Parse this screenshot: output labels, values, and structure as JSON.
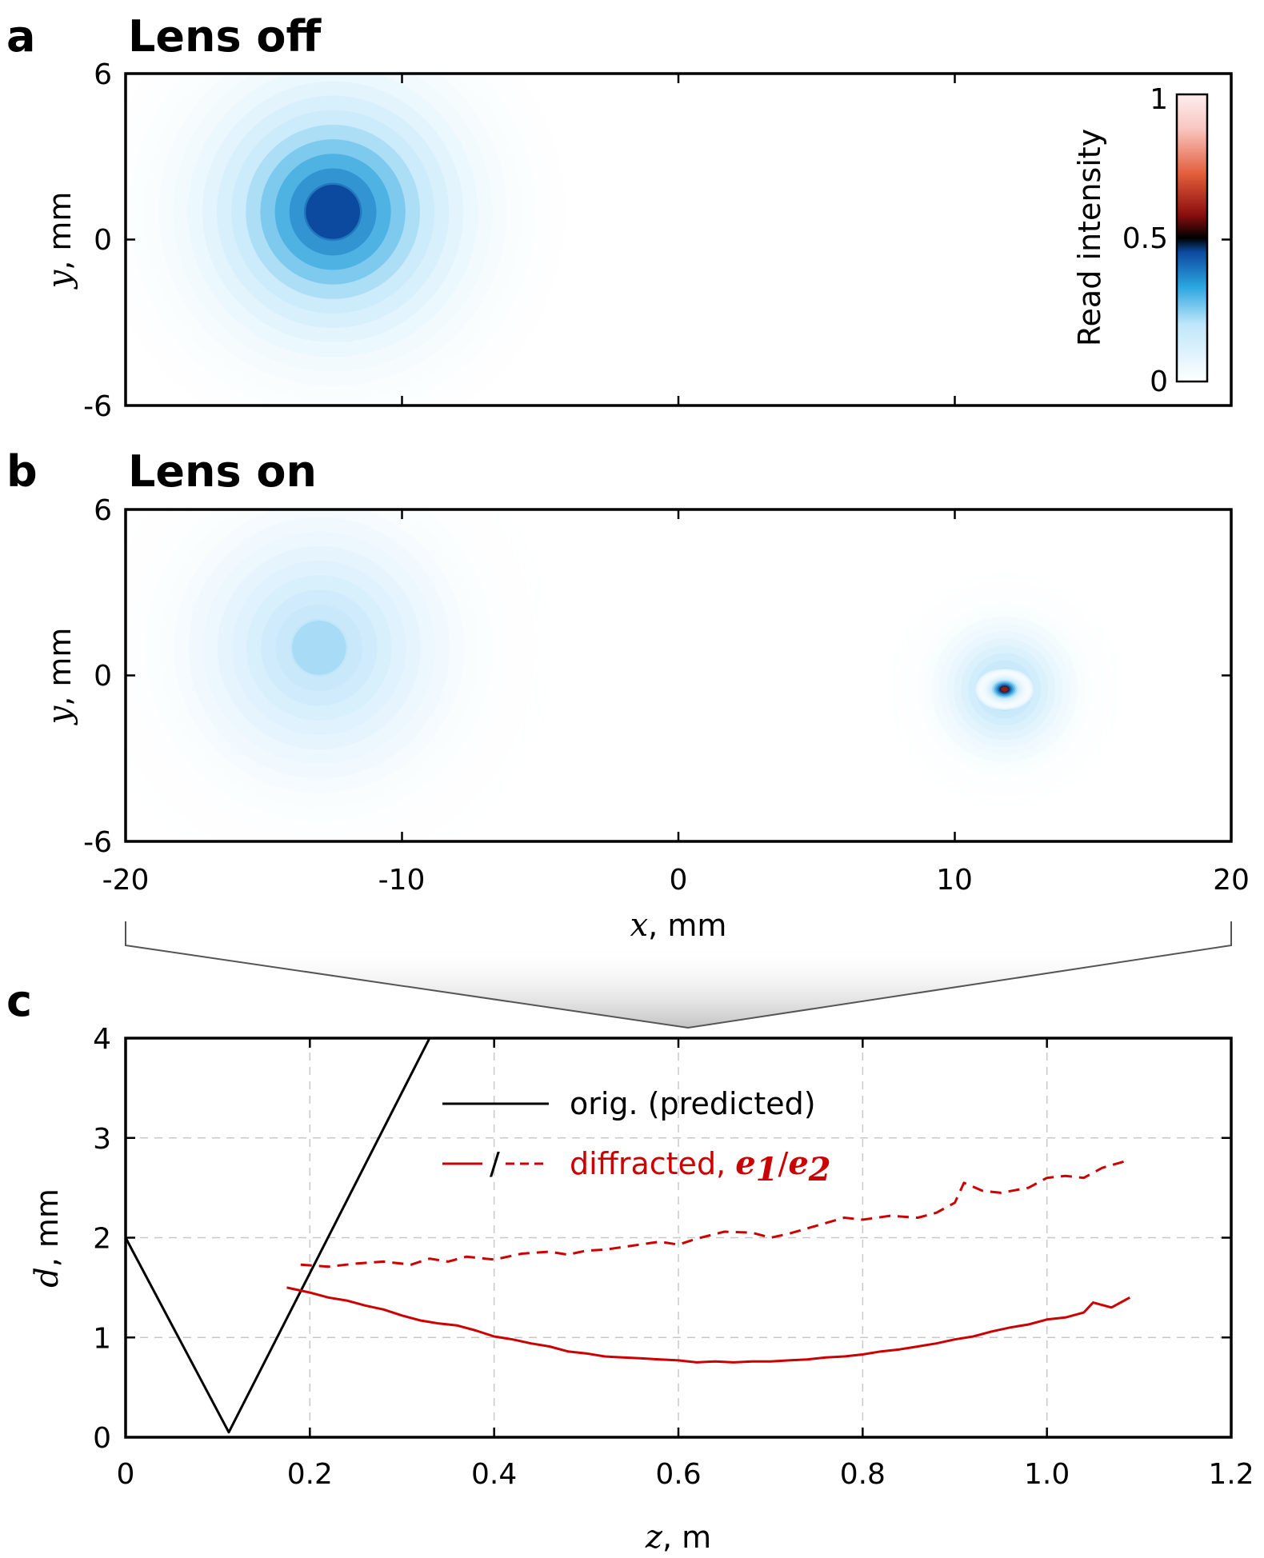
{
  "panels": {
    "a": {
      "letter": "a",
      "title": "Lens off"
    },
    "b": {
      "letter": "b",
      "title": "Lens on"
    },
    "c": {
      "letter": "c"
    }
  },
  "colors": {
    "predicted": "#000000",
    "diffracted": "#cc0000",
    "colormap": [
      "#ffffff",
      "#bfe6fa",
      "#2aa6e0",
      "#0c4aa0",
      "#000000",
      "#8a0e0e",
      "#e25c3a",
      "#f8c6bf",
      "#fdeeee"
    ]
  },
  "chart_data": [
    {
      "id": "a",
      "type": "heatmap",
      "title": "Lens off",
      "xlim": [
        -20,
        20
      ],
      "ylim": [
        -6,
        6
      ],
      "yticks": [
        "6",
        "0",
        "-6"
      ],
      "ylabel_var": "y",
      "ylabel_unit": ", mm",
      "blobs": [
        {
          "x": -12.5,
          "y": 1.0,
          "sigma_x": 2.8,
          "sigma_y": 2.8,
          "peak": 0.45
        }
      ],
      "colorbar": {
        "label": "Read intensity",
        "ticks": [
          "1",
          "0.5",
          "0"
        ],
        "range": [
          0,
          1
        ]
      }
    },
    {
      "id": "b",
      "type": "heatmap",
      "title": "Lens on",
      "xlim": [
        -20,
        20
      ],
      "ylim": [
        -6,
        6
      ],
      "xticks": [
        "-20",
        "-10",
        "0",
        "10",
        "20"
      ],
      "yticks": [
        "6",
        "0",
        "-6"
      ],
      "xlabel_var": "x",
      "xlabel_unit": ", mm",
      "ylabel_var": "y",
      "ylabel_unit": ", mm",
      "blobs": [
        {
          "x": -13.0,
          "y": 1.0,
          "sigma_x": 2.8,
          "sigma_y": 2.8,
          "peak": 0.22
        },
        {
          "x": 11.8,
          "y": -0.5,
          "sigma_x": 1.4,
          "sigma_y": 1.4,
          "peak": 0.25
        },
        {
          "x": 11.8,
          "y": -0.5,
          "sigma_x": 0.35,
          "sigma_y": 0.25,
          "peak": 0.6
        }
      ]
    },
    {
      "id": "c",
      "type": "line",
      "xlim": [
        0,
        1.2
      ],
      "ylim": [
        0,
        4
      ],
      "xticks": [
        "0",
        "0.2",
        "0.4",
        "0.6",
        "0.8",
        "1.0",
        "1.2"
      ],
      "yticks": [
        "0",
        "1",
        "2",
        "3",
        "4"
      ],
      "xlabel_var": "z",
      "xlabel_unit": ", m",
      "ylabel_var": "d",
      "ylabel_unit": ", mm",
      "grid": true,
      "legend": {
        "predicted": "orig. (predicted)",
        "separator": "/",
        "diffracted": "diffracted, ",
        "e1": "e",
        "e1_sub": "1",
        "slash": "/",
        "e2": "e",
        "e2_sub": "2"
      },
      "series": [
        {
          "name": "orig. (predicted)",
          "style": "solid",
          "color": "#000000",
          "x": [
            0,
            0.112,
            0.33
          ],
          "y": [
            2.0,
            0.05,
            4.0
          ]
        },
        {
          "name": "diffracted e1",
          "style": "solid",
          "color": "#cc0000",
          "x": [
            0.175,
            0.2,
            0.22,
            0.24,
            0.26,
            0.28,
            0.3,
            0.32,
            0.34,
            0.36,
            0.38,
            0.4,
            0.42,
            0.44,
            0.46,
            0.48,
            0.5,
            0.52,
            0.54,
            0.56,
            0.58,
            0.6,
            0.62,
            0.64,
            0.66,
            0.68,
            0.7,
            0.72,
            0.74,
            0.76,
            0.78,
            0.8,
            0.82,
            0.84,
            0.86,
            0.88,
            0.9,
            0.92,
            0.94,
            0.96,
            0.98,
            1.0,
            1.02,
            1.04,
            1.05,
            1.07,
            1.09
          ],
          "y": [
            1.5,
            1.45,
            1.4,
            1.37,
            1.32,
            1.28,
            1.22,
            1.17,
            1.14,
            1.12,
            1.07,
            1.01,
            0.98,
            0.94,
            0.91,
            0.86,
            0.84,
            0.81,
            0.8,
            0.79,
            0.78,
            0.77,
            0.75,
            0.76,
            0.75,
            0.76,
            0.76,
            0.77,
            0.78,
            0.8,
            0.81,
            0.83,
            0.86,
            0.88,
            0.91,
            0.94,
            0.98,
            1.01,
            1.06,
            1.1,
            1.13,
            1.18,
            1.2,
            1.25,
            1.35,
            1.3,
            1.4
          ]
        },
        {
          "name": "diffracted e2",
          "style": "dashed",
          "color": "#cc0000",
          "x": [
            0.19,
            0.22,
            0.25,
            0.28,
            0.31,
            0.33,
            0.35,
            0.37,
            0.4,
            0.43,
            0.46,
            0.48,
            0.5,
            0.52,
            0.55,
            0.58,
            0.6,
            0.62,
            0.65,
            0.68,
            0.7,
            0.72,
            0.75,
            0.78,
            0.8,
            0.83,
            0.86,
            0.88,
            0.9,
            0.91,
            0.93,
            0.95,
            0.98,
            1.0,
            1.02,
            1.04,
            1.06,
            1.09
          ],
          "y": [
            1.73,
            1.71,
            1.74,
            1.76,
            1.73,
            1.79,
            1.76,
            1.81,
            1.78,
            1.84,
            1.86,
            1.83,
            1.87,
            1.88,
            1.92,
            1.96,
            1.93,
            1.99,
            2.06,
            2.05,
            2.0,
            2.04,
            2.12,
            2.2,
            2.18,
            2.22,
            2.2,
            2.25,
            2.35,
            2.55,
            2.47,
            2.45,
            2.5,
            2.6,
            2.62,
            2.6,
            2.7,
            2.78
          ]
        }
      ]
    }
  ]
}
